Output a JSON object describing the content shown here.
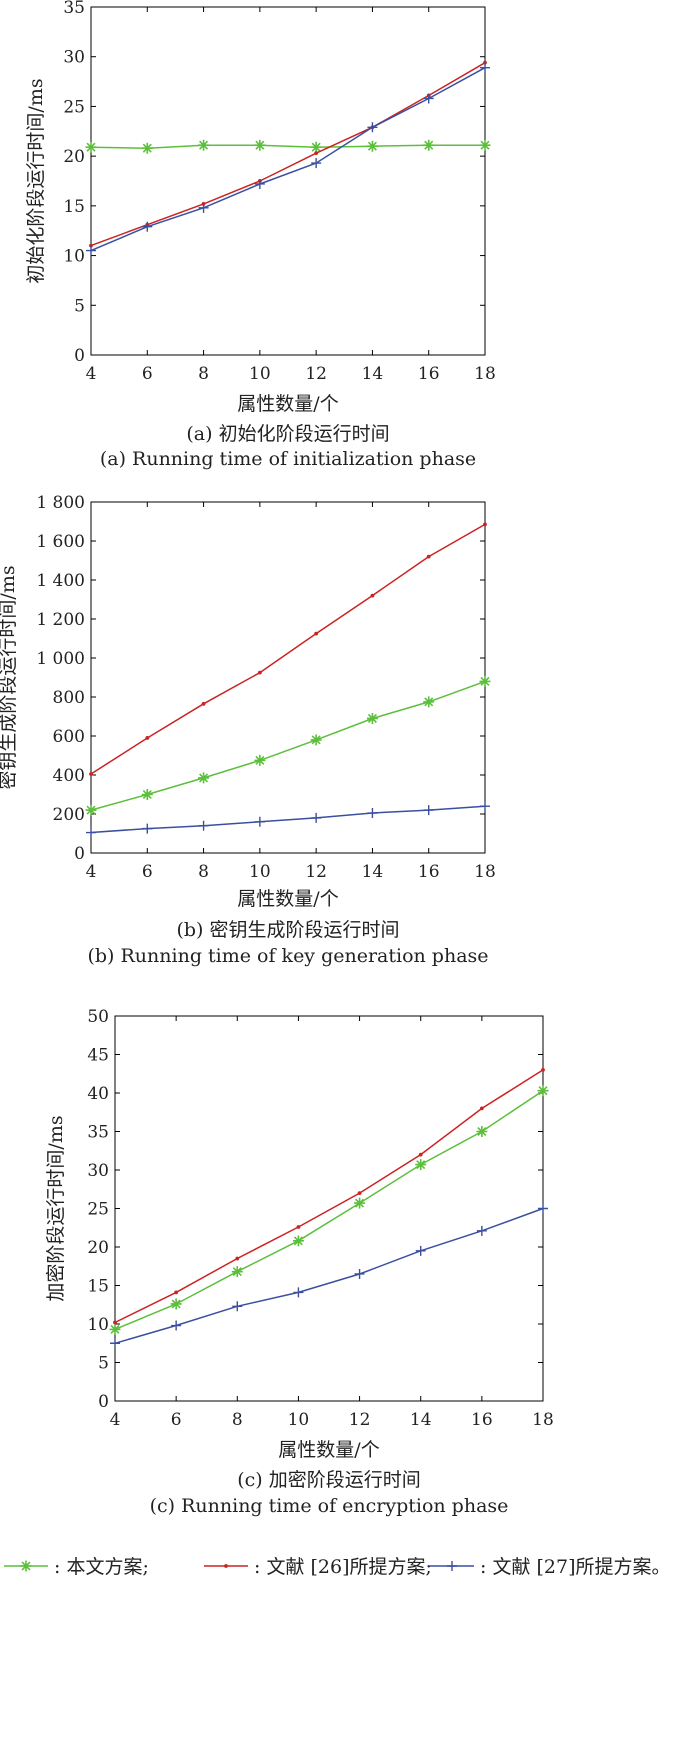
{
  "colors": {
    "green": "#5cbf3c",
    "red": "#cc2222",
    "blue": "#3a4fa0",
    "axis": "#000000"
  },
  "legend": {
    "items": [
      {
        "marker": "star",
        "color": "#5cbf3c",
        "label": ": 本文方案;"
      },
      {
        "marker": "dot",
        "color": "#cc2222",
        "label": ": 文献 [26]所提方案;"
      },
      {
        "marker": "plus",
        "color": "#3a4fa0",
        "label": ": 文献 [27]所提方案。"
      }
    ]
  },
  "chart_data": [
    {
      "type": "line",
      "xlabel": "属性数量/个",
      "ylabel": "初始化阶段运行时间/ms",
      "caption_cn": "(a) 初始化阶段运行时间",
      "caption_en": "(a) Running time of initialization phase",
      "xlim": [
        4,
        18
      ],
      "ylim": [
        0,
        35
      ],
      "xticks": [
        "4",
        "6",
        "8",
        "10",
        "12",
        "14",
        "16",
        "18"
      ],
      "yticks": [
        "0",
        "5",
        "10",
        "15",
        "20",
        "25",
        "30",
        "35"
      ],
      "x": [
        4,
        6,
        8,
        10,
        12,
        14,
        16,
        18
      ],
      "series": [
        {
          "marker": "star",
          "color": "#5cbf3c",
          "values": [
            20.9,
            20.8,
            21.1,
            21.1,
            20.9,
            21.0,
            21.1,
            21.1
          ]
        },
        {
          "marker": "dot",
          "color": "#cc2222",
          "values": [
            11.0,
            13.1,
            15.2,
            17.5,
            20.3,
            22.9,
            26.1,
            29.4
          ]
        },
        {
          "marker": "plus",
          "color": "#3a4fa0",
          "values": [
            10.5,
            12.9,
            14.8,
            17.2,
            19.3,
            22.9,
            25.8,
            28.9
          ]
        }
      ]
    },
    {
      "type": "line",
      "xlabel": "属性数量/个",
      "ylabel": "密钥生成阶段运行时间/ms",
      "caption_cn": "(b) 密钥生成阶段运行时间",
      "caption_en": "(b) Running time of key generation phase",
      "xlim": [
        4,
        18
      ],
      "ylim": [
        0,
        1800
      ],
      "xticks": [
        "4",
        "6",
        "8",
        "10",
        "12",
        "14",
        "16",
        "18"
      ],
      "yticks": [
        "0",
        "200",
        "400",
        "600",
        "800",
        "1 000",
        "1 200",
        "1 400",
        "1 600",
        "1 800"
      ],
      "x": [
        4,
        6,
        8,
        10,
        12,
        14,
        16,
        18
      ],
      "series": [
        {
          "marker": "star",
          "color": "#5cbf3c",
          "values": [
            220,
            300,
            385,
            475,
            580,
            690,
            775,
            880
          ]
        },
        {
          "marker": "dot",
          "color": "#cc2222",
          "values": [
            405,
            590,
            765,
            925,
            1125,
            1320,
            1520,
            1685
          ]
        },
        {
          "marker": "plus",
          "color": "#3a4fa0",
          "values": [
            105,
            125,
            140,
            160,
            180,
            205,
            220,
            240
          ]
        }
      ]
    },
    {
      "type": "line",
      "xlabel": "属性数量/个",
      "ylabel": "加密阶段运行时间/ms",
      "caption_cn": "(c) 加密阶段运行时间",
      "caption_en": "(c) Running time of encryption phase",
      "xlim": [
        4,
        18
      ],
      "ylim": [
        0,
        50
      ],
      "xticks": [
        "4",
        "6",
        "8",
        "10",
        "12",
        "14",
        "16",
        "18"
      ],
      "yticks": [
        "0",
        "5",
        "10",
        "15",
        "20",
        "25",
        "30",
        "35",
        "40",
        "45",
        "50"
      ],
      "x": [
        4,
        6,
        8,
        10,
        12,
        14,
        16,
        18
      ],
      "series": [
        {
          "marker": "star",
          "color": "#5cbf3c",
          "values": [
            9.3,
            12.6,
            16.8,
            20.8,
            25.7,
            30.7,
            35.0,
            40.3
          ]
        },
        {
          "marker": "dot",
          "color": "#cc2222",
          "values": [
            10.2,
            14.1,
            18.5,
            22.6,
            27.0,
            32.0,
            38.0,
            43.0
          ]
        },
        {
          "marker": "plus",
          "color": "#3a4fa0",
          "values": [
            7.5,
            9.8,
            12.3,
            14.1,
            16.5,
            19.5,
            22.1,
            25.0
          ]
        }
      ]
    }
  ]
}
